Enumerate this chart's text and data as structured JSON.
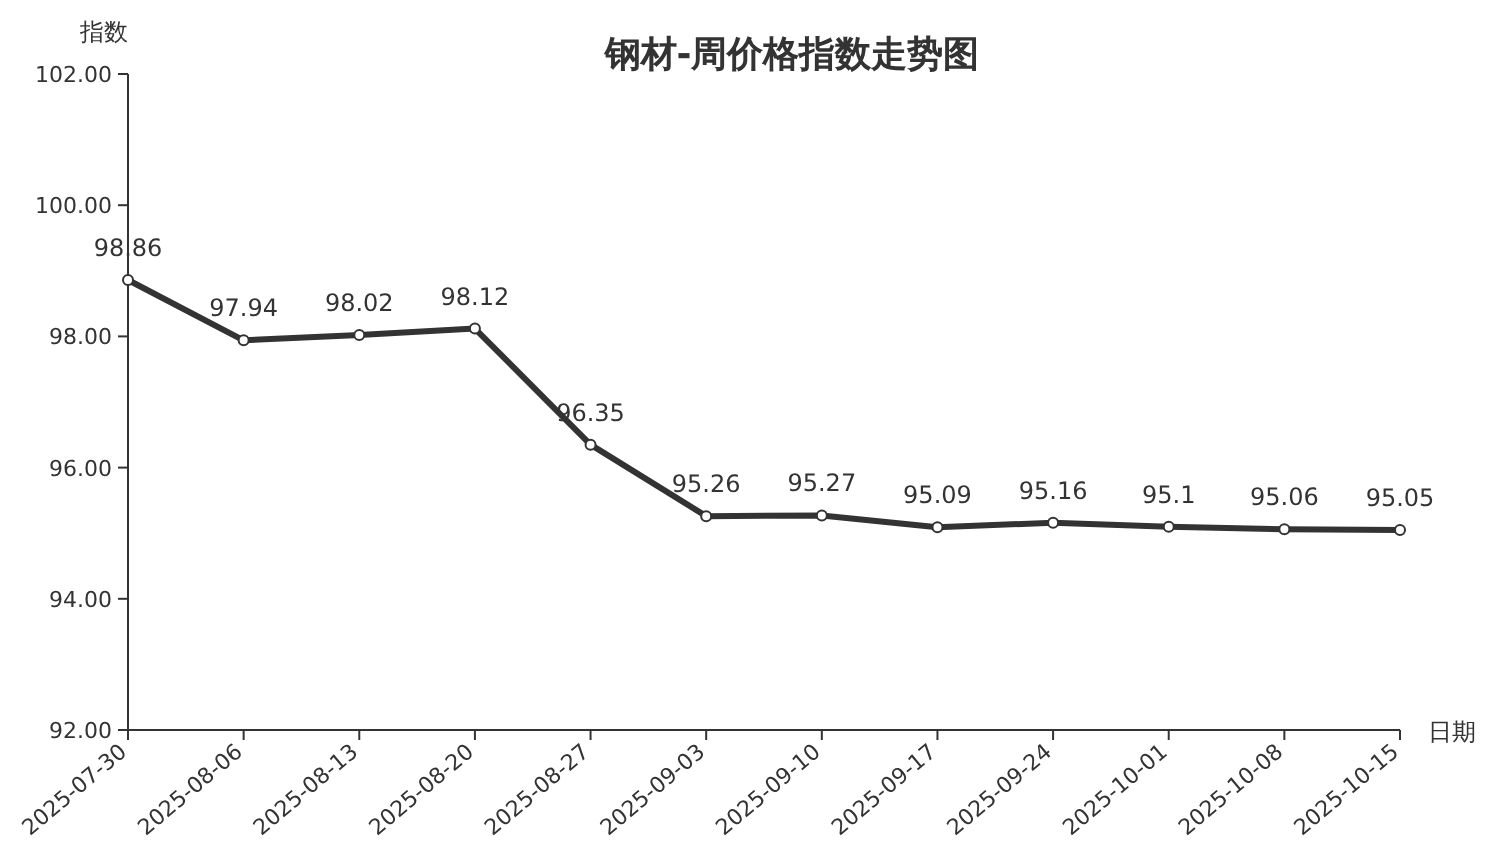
{
  "chart_data": {
    "type": "line",
    "title": "钢材-周价格指数走势图",
    "ylabel": "指数",
    "xlabel": "日期",
    "categories": [
      "2025-07-30",
      "2025-08-06",
      "2025-08-13",
      "2025-08-20",
      "2025-08-27",
      "2025-09-03",
      "2025-09-10",
      "2025-09-17",
      "2025-09-24",
      "2025-10-01",
      "2025-10-08",
      "2025-10-15"
    ],
    "values": [
      98.86,
      97.94,
      98.02,
      98.12,
      96.35,
      95.26,
      95.27,
      95.09,
      95.16,
      95.1,
      95.06,
      95.05
    ],
    "color": "#333333",
    "ylim": [
      92,
      102
    ],
    "yticks": [
      {
        "value": 92,
        "label": "92.00"
      },
      {
        "value": 94,
        "label": "94.00"
      },
      {
        "value": 96,
        "label": "96.00"
      },
      {
        "value": 98,
        "label": "98.00"
      },
      {
        "value": 100,
        "label": "100.00"
      },
      {
        "value": 102,
        "label": "102.00"
      }
    ],
    "data_labels": true,
    "marker": "circle",
    "line_style": "solid",
    "grid": false
  }
}
